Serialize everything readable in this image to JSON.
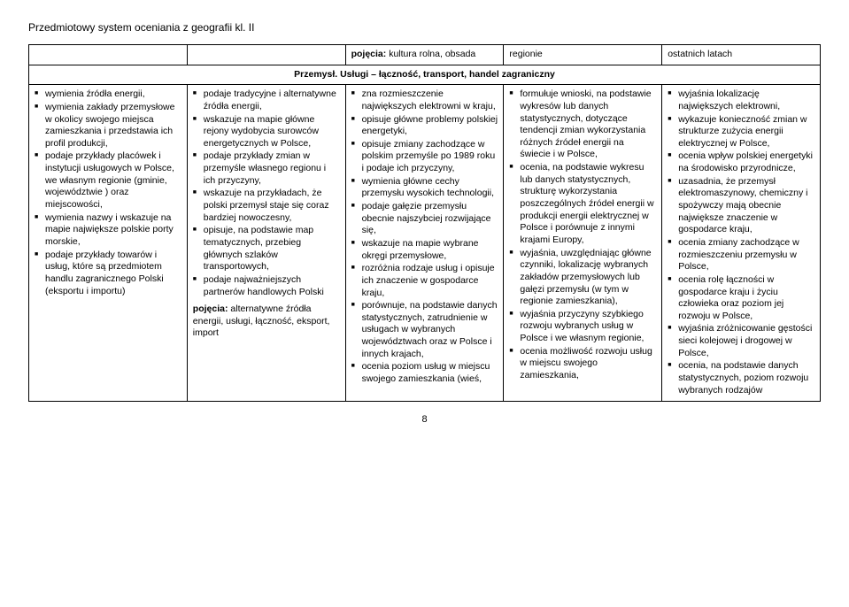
{
  "header": "Przedmiotowy system oceniania z geografii kl. II",
  "top_row": {
    "c1": "",
    "c2": "",
    "c3_label": "pojęcia:",
    "c3_text": " kultura rolna, obsada",
    "c4": "regionie",
    "c5": "ostatnich latach"
  },
  "section_title": "Przemysł. Usługi – łączność, transport, handel zagraniczny",
  "col1_items": [
    "wymienia źródła energii,",
    "wymienia zakłady przemysłowe w okolicy swojego miejsca zamieszkania i przedstawia ich profil produkcji,",
    "podaje przykłady placówek i instytucji usługowych w Polsce, we własnym regionie (gminie, województwie ) oraz miejscowości,",
    "wymienia nazwy i wskazuje na mapie największe polskie porty morskie,",
    "podaje przykłady towarów i usług, które są przedmiotem handlu zagranicznego Polski (eksportu i importu)"
  ],
  "col2_items": [
    "podaje tradycyjne i alternatywne źródła energii,",
    "wskazuje na mapie główne rejony wydobycia surowców energetycznych w Polsce,",
    "podaje przykłady zmian w przemyśle własnego regionu i ich przyczyny,",
    "wskazuje na przykładach, że polski przemysł staje się coraz bardziej nowoczesny,",
    "opisuje, na podstawie map tematycznych, przebieg głównych szlaków transportowych,",
    "podaje najważniejszych partnerów handlowych Polski"
  ],
  "col2_concepts_label": "pojęcia:",
  "col2_concepts_text": " alternatywne źródła energii, usługi, łączność, eksport, import",
  "col3_items": [
    "zna rozmieszczenie największych elektrowni w kraju,",
    "opisuje główne problemy polskiej energetyki,",
    "opisuje zmiany zachodzące w polskim przemyśle po 1989 roku i podaje ich przyczyny,",
    "wymienia główne cechy przemysłu wysokich technologii,",
    "podaje gałęzie przemysłu obecnie najszybciej rozwijające się,",
    "wskazuje na mapie wybrane okręgi przemysłowe,",
    "rozróżnia rodzaje usług i opisuje ich znaczenie w gospodarce kraju,",
    "porównuje, na podstawie danych statystycznych, zatrudnienie w usługach w wybranych województwach oraz w Polsce i innych krajach,",
    "ocenia poziom usług w miejscu swojego zamieszkania (wieś,"
  ],
  "col4_items": [
    "formułuje wnioski, na podstawie wykresów lub danych statystycznych, dotyczące tendencji zmian wykorzystania różnych źródeł energii na świecie i w Polsce,",
    "ocenia, na podstawie wykresu lub danych statystycznych, strukturę wykorzystania poszczególnych źródeł energii w produkcji energii elektrycznej w Polsce i porównuje z innymi krajami Europy,",
    "wyjaśnia, uwzględniając główne czynniki, lokalizację wybranych zakładów przemysłowych lub gałęzi przemysłu (w tym w regionie zamieszkania),",
    "wyjaśnia przyczyny szybkiego rozwoju wybranych usług w Polsce i we własnym regionie,",
    "ocenia możliwość rozwoju usług w miejscu swojego zamieszkania,"
  ],
  "col5_items": [
    "wyjaśnia lokalizację największych elektrowni,",
    "wykazuje konieczność zmian w strukturze zużycia energii elektrycznej w Polsce,",
    "ocenia wpływ polskiej energetyki na środowisko przyrodnicze,",
    "uzasadnia, że przemysł elektromaszynowy, chemiczny i spożywczy mają obecnie największe znaczenie w gospodarce kraju,",
    "ocenia zmiany zachodzące w rozmieszczeniu przemysłu w Polsce,",
    "ocenia rolę łączności w gospodarce kraju i życiu człowieka oraz poziom jej rozwoju w Polsce,",
    "wyjaśnia zróżnicowanie gęstości sieci kolejowej i drogowej w Polsce,",
    "ocenia, na podstawie danych statystycznych, poziom rozwoju wybranych rodzajów"
  ],
  "page_number": "8"
}
